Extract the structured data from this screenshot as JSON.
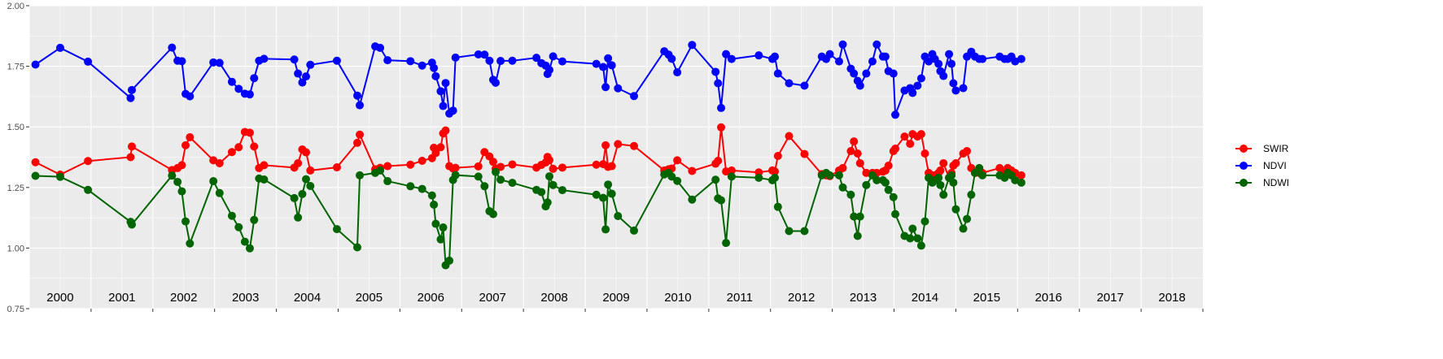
{
  "chart_data": {
    "type": "line",
    "title": "",
    "xlabel": "",
    "ylabel": "",
    "ylim": [
      0.75,
      2.0
    ],
    "y_ticks": [
      "0.75",
      "1.00",
      "1.25",
      "1.50",
      "1.75",
      "2.00"
    ],
    "x_range": [
      2000.0,
      2019.0
    ],
    "year_labels": [
      "2000",
      "2001",
      "2002",
      "2003",
      "2004",
      "2005",
      "2006",
      "2007",
      "2008",
      "2009",
      "2010",
      "2011",
      "2012",
      "2013",
      "2014",
      "2015",
      "2016",
      "2017",
      "2018"
    ],
    "grid": true,
    "background": "#ebebeb",
    "legend_position": "right",
    "series": [
      {
        "name": "SWIR",
        "color": "#ff0000",
        "x": [
          2000.1,
          2000.5,
          2000.95,
          2001.64,
          2001.66,
          2002.31,
          2002.4,
          2002.47,
          2002.53,
          2002.6,
          2002.98,
          2003.08,
          2003.28,
          2003.39,
          2003.49,
          2003.57,
          2003.64,
          2003.72,
          2003.8,
          2004.29,
          2004.35,
          2004.42,
          2004.48,
          2004.55,
          2004.98,
          2005.31,
          2005.35,
          2005.6,
          2005.68,
          2005.8,
          2006.17,
          2006.36,
          2006.52,
          2006.55,
          2006.58,
          2006.66,
          2006.7,
          2006.74,
          2006.8,
          2006.86,
          2006.9,
          2007.27,
          2007.37,
          2007.45,
          2007.51,
          2007.55,
          2007.63,
          2007.82,
          2008.21,
          2008.29,
          2008.36,
          2008.39,
          2008.42,
          2008.48,
          2008.63,
          2009.18,
          2009.29,
          2009.33,
          2009.37,
          2009.43,
          2009.53,
          2009.79,
          2010.28,
          2010.35,
          2010.4,
          2010.49,
          2010.73,
          2011.11,
          2011.15,
          2011.2,
          2011.28,
          2011.37,
          2011.81,
          2012.03,
          2012.07,
          2012.12,
          2012.3,
          2012.55,
          2012.83,
          2012.9,
          2012.96,
          2013.11,
          2013.17,
          2013.3,
          2013.35,
          2013.41,
          2013.45,
          2013.55,
          2013.65,
          2013.72,
          2013.82,
          2013.86,
          2013.91,
          2013.99,
          2014.02,
          2014.17,
          2014.26,
          2014.3,
          2014.38,
          2014.44,
          2014.5,
          2014.56,
          2014.62,
          2014.66,
          2014.72,
          2014.75,
          2014.8,
          2014.89,
          2014.93,
          2014.96,
          2015.0,
          2015.12,
          2015.18,
          2015.25,
          2015.31,
          2015.38,
          2015.43,
          2015.71,
          2015.79,
          2015.84,
          2015.9,
          2015.96,
          2016.06
        ],
        "values": [
          1.354,
          1.303,
          1.359,
          1.375,
          1.419,
          1.322,
          1.33,
          1.342,
          1.424,
          1.457,
          1.362,
          1.35,
          1.396,
          1.416,
          1.479,
          1.476,
          1.419,
          1.33,
          1.342,
          1.332,
          1.35,
          1.407,
          1.395,
          1.32,
          1.333,
          1.434,
          1.468,
          1.325,
          1.331,
          1.338,
          1.344,
          1.36,
          1.371,
          1.414,
          1.392,
          1.416,
          1.473,
          1.485,
          1.338,
          1.328,
          1.331,
          1.337,
          1.396,
          1.378,
          1.356,
          1.328,
          1.335,
          1.345,
          1.332,
          1.343,
          1.353,
          1.376,
          1.363,
          1.327,
          1.332,
          1.344,
          1.346,
          1.424,
          1.335,
          1.338,
          1.429,
          1.421,
          1.32,
          1.325,
          1.328,
          1.362,
          1.318,
          1.348,
          1.36,
          1.498,
          1.316,
          1.32,
          1.312,
          1.32,
          1.316,
          1.38,
          1.462,
          1.388,
          1.305,
          1.3,
          1.297,
          1.32,
          1.33,
          1.4,
          1.44,
          1.39,
          1.35,
          1.31,
          1.31,
          1.31,
          1.315,
          1.32,
          1.34,
          1.4,
          1.41,
          1.46,
          1.43,
          1.47,
          1.46,
          1.47,
          1.39,
          1.31,
          1.3,
          1.3,
          1.31,
          1.32,
          1.35,
          1.29,
          1.31,
          1.34,
          1.35,
          1.39,
          1.4,
          1.33,
          1.31,
          1.31,
          1.31,
          1.33,
          1.31,
          1.33,
          1.32,
          1.31,
          1.3
        ]
      },
      {
        "name": "NDVI",
        "color": "#0000ff",
        "x": [
          2000.1,
          2000.5,
          2000.95,
          2001.64,
          2001.66,
          2002.31,
          2002.4,
          2002.47,
          2002.53,
          2002.6,
          2002.98,
          2003.08,
          2003.28,
          2003.39,
          2003.49,
          2003.57,
          2003.64,
          2003.72,
          2003.8,
          2004.29,
          2004.35,
          2004.42,
          2004.48,
          2004.55,
          2004.98,
          2005.31,
          2005.35,
          2005.6,
          2005.68,
          2005.8,
          2006.17,
          2006.36,
          2006.52,
          2006.55,
          2006.58,
          2006.66,
          2006.7,
          2006.74,
          2006.8,
          2006.86,
          2006.9,
          2007.27,
          2007.37,
          2007.45,
          2007.51,
          2007.55,
          2007.63,
          2007.82,
          2008.21,
          2008.29,
          2008.36,
          2008.39,
          2008.42,
          2008.48,
          2008.63,
          2009.18,
          2009.29,
          2009.33,
          2009.37,
          2009.43,
          2009.53,
          2009.79,
          2010.28,
          2010.35,
          2010.4,
          2010.49,
          2010.73,
          2011.11,
          2011.15,
          2011.2,
          2011.28,
          2011.37,
          2011.81,
          2012.03,
          2012.07,
          2012.12,
          2012.3,
          2012.55,
          2012.83,
          2012.9,
          2012.96,
          2013.11,
          2013.17,
          2013.3,
          2013.35,
          2013.41,
          2013.45,
          2013.55,
          2013.65,
          2013.72,
          2013.82,
          2013.86,
          2013.91,
          2013.99,
          2014.02,
          2014.17,
          2014.26,
          2014.3,
          2014.38,
          2014.44,
          2014.5,
          2014.56,
          2014.62,
          2014.66,
          2014.72,
          2014.75,
          2014.8,
          2014.89,
          2014.93,
          2014.96,
          2015.0,
          2015.12,
          2015.18,
          2015.25,
          2015.31,
          2015.38,
          2015.43,
          2015.71,
          2015.79,
          2015.84,
          2015.9,
          2015.96,
          2016.06
        ],
        "values": [
          1.757,
          1.826,
          1.769,
          1.619,
          1.652,
          1.827,
          1.773,
          1.771,
          1.636,
          1.626,
          1.766,
          1.764,
          1.686,
          1.657,
          1.637,
          1.634,
          1.701,
          1.773,
          1.781,
          1.778,
          1.72,
          1.683,
          1.708,
          1.756,
          1.773,
          1.629,
          1.589,
          1.832,
          1.826,
          1.775,
          1.771,
          1.753,
          1.765,
          1.743,
          1.709,
          1.647,
          1.586,
          1.681,
          1.555,
          1.567,
          1.786,
          1.799,
          1.798,
          1.773,
          1.694,
          1.682,
          1.772,
          1.773,
          1.785,
          1.763,
          1.753,
          1.718,
          1.735,
          1.791,
          1.77,
          1.76,
          1.747,
          1.664,
          1.783,
          1.754,
          1.659,
          1.627,
          1.812,
          1.798,
          1.781,
          1.725,
          1.838,
          1.727,
          1.68,
          1.578,
          1.8,
          1.78,
          1.795,
          1.78,
          1.79,
          1.72,
          1.68,
          1.67,
          1.79,
          1.78,
          1.8,
          1.77,
          1.84,
          1.74,
          1.72,
          1.69,
          1.67,
          1.72,
          1.77,
          1.84,
          1.79,
          1.79,
          1.73,
          1.72,
          1.55,
          1.65,
          1.66,
          1.64,
          1.67,
          1.7,
          1.79,
          1.77,
          1.8,
          1.78,
          1.76,
          1.73,
          1.71,
          1.8,
          1.76,
          1.68,
          1.65,
          1.66,
          1.79,
          1.81,
          1.79,
          1.78,
          1.78,
          1.79,
          1.78,
          1.78,
          1.79,
          1.77,
          1.78
        ]
      },
      {
        "name": "NDWI",
        "color": "#006400",
        "x": [
          2000.1,
          2000.5,
          2000.95,
          2001.64,
          2001.66,
          2002.31,
          2002.4,
          2002.47,
          2002.53,
          2002.6,
          2002.98,
          2003.08,
          2003.28,
          2003.39,
          2003.49,
          2003.57,
          2003.64,
          2003.72,
          2003.8,
          2004.29,
          2004.35,
          2004.42,
          2004.48,
          2004.55,
          2004.98,
          2005.31,
          2005.35,
          2005.6,
          2005.68,
          2005.8,
          2006.17,
          2006.36,
          2006.52,
          2006.55,
          2006.58,
          2006.66,
          2006.7,
          2006.74,
          2006.8,
          2006.86,
          2006.9,
          2007.27,
          2007.37,
          2007.45,
          2007.51,
          2007.55,
          2007.63,
          2007.82,
          2008.21,
          2008.29,
          2008.36,
          2008.39,
          2008.42,
          2008.48,
          2008.63,
          2009.18,
          2009.29,
          2009.33,
          2009.37,
          2009.43,
          2009.53,
          2009.79,
          2010.28,
          2010.35,
          2010.4,
          2010.49,
          2010.73,
          2011.11,
          2011.15,
          2011.2,
          2011.28,
          2011.37,
          2011.81,
          2012.03,
          2012.07,
          2012.12,
          2012.3,
          2012.55,
          2012.83,
          2012.9,
          2012.96,
          2013.11,
          2013.17,
          2013.3,
          2013.35,
          2013.41,
          2013.45,
          2013.55,
          2013.65,
          2013.72,
          2013.82,
          2013.86,
          2013.91,
          2013.99,
          2014.02,
          2014.17,
          2014.26,
          2014.3,
          2014.38,
          2014.44,
          2014.5,
          2014.56,
          2014.62,
          2014.66,
          2014.72,
          2014.75,
          2014.8,
          2014.89,
          2014.93,
          2014.96,
          2015.0,
          2015.12,
          2015.18,
          2015.25,
          2015.31,
          2015.38,
          2015.43,
          2015.71,
          2015.79,
          2015.84,
          2015.9,
          2015.96,
          2016.06
        ],
        "values": [
          1.298,
          1.294,
          1.24,
          1.108,
          1.097,
          1.299,
          1.273,
          1.234,
          1.11,
          1.019,
          1.276,
          1.227,
          1.133,
          1.086,
          1.026,
          0.999,
          1.116,
          1.287,
          1.283,
          1.206,
          1.126,
          1.223,
          1.284,
          1.256,
          1.078,
          1.003,
          1.3,
          1.31,
          1.32,
          1.276,
          1.255,
          1.244,
          1.217,
          1.179,
          1.1,
          1.036,
          1.085,
          0.929,
          0.948,
          1.281,
          1.301,
          1.295,
          1.255,
          1.152,
          1.14,
          1.314,
          1.282,
          1.269,
          1.24,
          1.231,
          1.172,
          1.188,
          1.296,
          1.26,
          1.239,
          1.22,
          1.207,
          1.077,
          1.262,
          1.224,
          1.132,
          1.072,
          1.304,
          1.31,
          1.295,
          1.277,
          1.2,
          1.282,
          1.205,
          1.197,
          1.021,
          1.295,
          1.29,
          1.28,
          1.29,
          1.17,
          1.07,
          1.07,
          1.3,
          1.31,
          1.3,
          1.3,
          1.25,
          1.22,
          1.13,
          1.05,
          1.13,
          1.26,
          1.3,
          1.28,
          1.28,
          1.27,
          1.24,
          1.21,
          1.14,
          1.05,
          1.04,
          1.08,
          1.04,
          1.01,
          1.11,
          1.29,
          1.27,
          1.28,
          1.29,
          1.26,
          1.22,
          1.29,
          1.3,
          1.27,
          1.16,
          1.08,
          1.12,
          1.22,
          1.31,
          1.33,
          1.3,
          1.3,
          1.29,
          1.31,
          1.3,
          1.28,
          1.27
        ]
      }
    ]
  }
}
